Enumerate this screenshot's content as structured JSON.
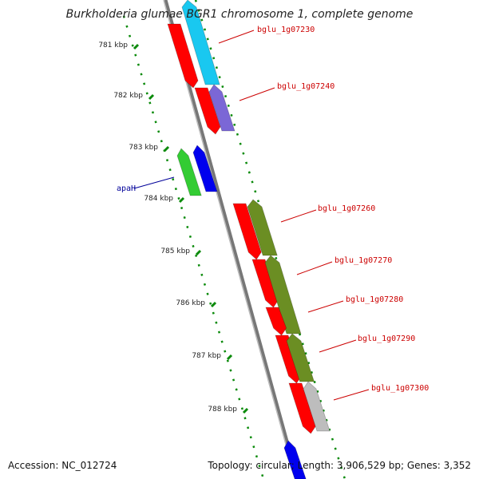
{
  "title": "Burkholderia glumae BGR1 chromosome 1, complete genome",
  "accession": "Accession: NC_012724",
  "summary": "Topology: circular; Length: 3,906,529 bp; Genes: 3,352",
  "colors": {
    "backbone": "#888888",
    "tick": "#0a8a0a",
    "label_red": "#cc0000",
    "label_blue": "#000099",
    "gene_red": "#ff0000",
    "gene_cyan": "#19c8f0",
    "gene_purple": "#7b67d6",
    "gene_green": "#33cc33",
    "gene_blue": "#0000ee",
    "gene_olive": "#6b8e23",
    "gene_gray": "#bdbdbd"
  },
  "ruler": [
    {
      "label": "781 kbp"
    },
    {
      "label": "782 kbp"
    },
    {
      "label": "783 kbp"
    },
    {
      "label": "784 kbp"
    },
    {
      "label": "785 kbp"
    },
    {
      "label": "786 kbp"
    },
    {
      "label": "787 kbp"
    },
    {
      "label": "788 kbp"
    }
  ],
  "gene_labels": [
    {
      "name": "bglu_1g07230",
      "color": "red"
    },
    {
      "name": "bglu_1g07240",
      "color": "red"
    },
    {
      "name": "apaH",
      "color": "blue"
    },
    {
      "name": "bglu_1g07260",
      "color": "red"
    },
    {
      "name": "bglu_1g07270",
      "color": "red"
    },
    {
      "name": "bglu_1g07280",
      "color": "red"
    },
    {
      "name": "bglu_1g07290",
      "color": "red"
    },
    {
      "name": "bglu_1g07300",
      "color": "red"
    }
  ]
}
